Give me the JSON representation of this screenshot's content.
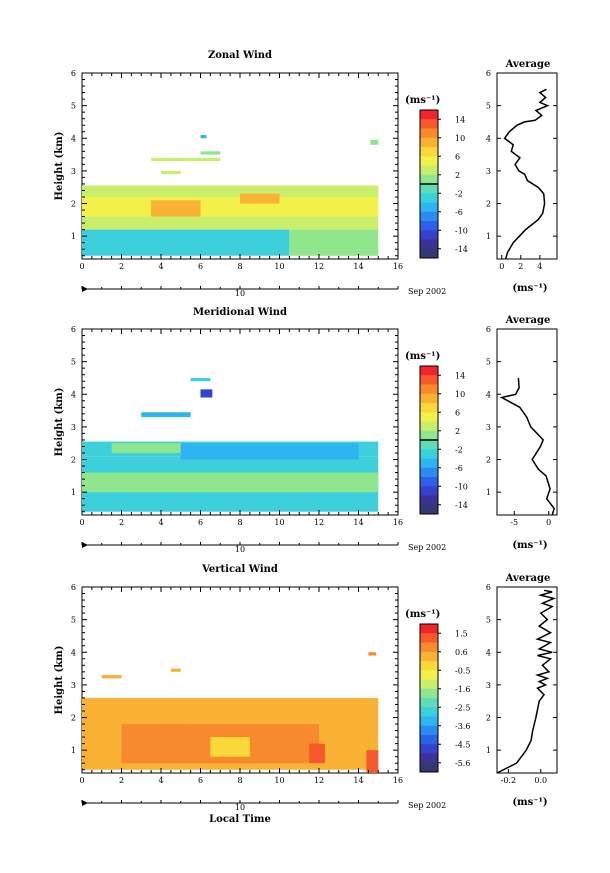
{
  "chart_data": [
    {
      "type": "heatmap",
      "title": "Zonal Wind",
      "xlabel": "",
      "ylabel": "Height (km)",
      "x_ticks": [
        "0",
        "2",
        "4",
        "6",
        "8",
        "10",
        "12",
        "14",
        "16"
      ],
      "y_ticks": [
        "1",
        "2",
        "3",
        "4",
        "5",
        "6"
      ],
      "xlim": [
        0,
        16
      ],
      "ylim": [
        0.3,
        6
      ],
      "date_label": "Sep 2002",
      "date_day": "10",
      "colorbar": {
        "unit": "(ms⁻¹)",
        "tick_labels": [
          "14",
          "10",
          "6",
          "2",
          "-2",
          "-6",
          "-10",
          "-14"
        ],
        "zero_line_index": 8
      },
      "cells": [
        {
          "t0": 0,
          "t1": 15,
          "h0": 2.2,
          "h1": 2.55,
          "v": 4
        },
        {
          "t0": 0,
          "t1": 15,
          "h0": 1.6,
          "h1": 2.2,
          "v": 6
        },
        {
          "t0": 0,
          "t1": 15,
          "h0": 1.2,
          "h1": 1.6,
          "v": 3
        },
        {
          "t0": 0,
          "t1": 10.5,
          "h0": 0.4,
          "h1": 1.2,
          "v": -3
        },
        {
          "t0": 10.5,
          "t1": 15,
          "h0": 0.4,
          "h1": 1.2,
          "v": 2
        },
        {
          "t0": 3.5,
          "t1": 6,
          "h0": 1.6,
          "h1": 2.1,
          "v": 9
        },
        {
          "t0": 8,
          "t1": 10,
          "h0": 2.0,
          "h1": 2.3,
          "v": 10
        },
        {
          "t0": 4,
          "t1": 5,
          "h0": 2.9,
          "h1": 3.0,
          "v": 3
        },
        {
          "t0": 6,
          "t1": 7,
          "h0": 3.5,
          "h1": 3.6,
          "v": 1
        },
        {
          "t0": 6,
          "t1": 6.3,
          "h0": 4.0,
          "h1": 4.1,
          "v": -4
        },
        {
          "t0": 14.6,
          "t1": 15,
          "h0": 3.8,
          "h1": 3.95,
          "v": 2
        },
        {
          "t0": 3.5,
          "t1": 7,
          "h0": 3.3,
          "h1": 3.4,
          "v": 4
        }
      ],
      "avg_profile": {
        "title": "Average",
        "x_ticks": [
          "0",
          "2",
          "4"
        ],
        "xlim": [
          -0.5,
          5.8
        ],
        "unit": "(ms⁻¹)",
        "points": [
          [
            0.4,
            0.3
          ],
          [
            0.6,
            0.5
          ],
          [
            1.2,
            0.8
          ],
          [
            2.5,
            1.2
          ],
          [
            3.8,
            1.5
          ],
          [
            4.3,
            1.7
          ],
          [
            4.5,
            2.0
          ],
          [
            4.4,
            2.3
          ],
          [
            3.8,
            2.5
          ],
          [
            2.7,
            2.7
          ],
          [
            2.4,
            2.9
          ],
          [
            1.8,
            3.0
          ],
          [
            1.4,
            3.2
          ],
          [
            1.9,
            3.4
          ],
          [
            1.0,
            3.6
          ],
          [
            1.2,
            3.8
          ],
          [
            0.3,
            4.0
          ],
          [
            0.8,
            4.2
          ],
          [
            1.6,
            4.4
          ],
          [
            2.4,
            4.5
          ],
          [
            3.5,
            4.55
          ],
          [
            4.2,
            4.7
          ],
          [
            3.6,
            4.85
          ],
          [
            4.8,
            5.0
          ],
          [
            4.0,
            5.1
          ],
          [
            4.6,
            5.25
          ],
          [
            4.0,
            5.4
          ],
          [
            4.7,
            5.5
          ]
        ]
      }
    },
    {
      "type": "heatmap",
      "title": "Meridional Wind",
      "xlabel": "",
      "ylabel": "Height (km)",
      "x_ticks": [
        "0",
        "2",
        "4",
        "6",
        "8",
        "10",
        "12",
        "14",
        "16"
      ],
      "y_ticks": [
        "1",
        "2",
        "3",
        "4",
        "5",
        "6"
      ],
      "xlim": [
        0,
        16
      ],
      "ylim": [
        0.3,
        6
      ],
      "date_label": "Sep 2002",
      "date_day": "10",
      "colorbar": {
        "unit": "(ms⁻¹)",
        "tick_labels": [
          "14",
          "10",
          "6",
          "2",
          "-2",
          "-6",
          "-10",
          "-14"
        ],
        "zero_line_index": 8
      },
      "cells": [
        {
          "t0": 0,
          "t1": 15,
          "h0": 2.1,
          "h1": 2.55,
          "v": -2
        },
        {
          "t0": 0,
          "t1": 15,
          "h0": 0.4,
          "h1": 2.1,
          "v": -3
        },
        {
          "t0": 0,
          "t1": 15,
          "h0": 1.0,
          "h1": 1.6,
          "v": 1
        },
        {
          "t0": 5,
          "t1": 14,
          "h0": 2.0,
          "h1": 2.5,
          "v": -4
        },
        {
          "t0": 3,
          "t1": 5.5,
          "h0": 3.3,
          "h1": 3.45,
          "v": -5
        },
        {
          "t0": 6,
          "t1": 6.6,
          "h0": 3.9,
          "h1": 4.15,
          "v": -10
        },
        {
          "t0": 5.5,
          "t1": 6.5,
          "h0": 4.4,
          "h1": 4.5,
          "v": -2
        },
        {
          "t0": 1.5,
          "t1": 5,
          "h0": 2.2,
          "h1": 2.5,
          "v": 2
        }
      ],
      "avg_profile": {
        "title": "Average",
        "x_ticks": [
          "-5",
          "0"
        ],
        "xlim": [
          -7.5,
          1.2
        ],
        "unit": "(ms⁻¹)",
        "points": [
          [
            0.5,
            0.3
          ],
          [
            0.8,
            0.5
          ],
          [
            -0.3,
            0.8
          ],
          [
            0.2,
            1.1
          ],
          [
            -0.4,
            1.5
          ],
          [
            -1.5,
            1.7
          ],
          [
            -2.4,
            2.0
          ],
          [
            -1.2,
            2.4
          ],
          [
            -0.8,
            2.6
          ],
          [
            -2.6,
            3.0
          ],
          [
            -3.2,
            3.3
          ],
          [
            -4.2,
            3.6
          ],
          [
            -6.8,
            3.9
          ],
          [
            -4.8,
            4.0
          ],
          [
            -4.3,
            4.2
          ],
          [
            -4.4,
            4.5
          ]
        ]
      }
    },
    {
      "type": "heatmap",
      "title": "Vertical Wind",
      "xlabel": "Local Time",
      "ylabel": "Height (km)",
      "x_ticks": [
        "0",
        "2",
        "4",
        "6",
        "8",
        "10",
        "12",
        "14",
        "16"
      ],
      "y_ticks": [
        "1",
        "2",
        "3",
        "4",
        "5",
        "6"
      ],
      "xlim": [
        0,
        16
      ],
      "ylim": [
        0.3,
        6
      ],
      "date_label": "Sep 2002",
      "date_day": "10",
      "colorbar": {
        "unit": "(ms⁻¹)",
        "tick_labels": [
          "1.5",
          "0.6",
          "-0.5",
          "-1.6",
          "-2.5",
          "-3.6",
          "-4.5",
          "-5.6"
        ],
        "zero_line_index": -1
      },
      "cells": [
        {
          "t0": 0,
          "t1": 15,
          "h0": 0.4,
          "h1": 2.6,
          "v": 0.4
        },
        {
          "t0": 2,
          "t1": 12,
          "h0": 0.6,
          "h1": 1.8,
          "v": 0.6
        },
        {
          "t0": 11.5,
          "t1": 12.3,
          "h0": 0.6,
          "h1": 1.2,
          "v": 1.4
        },
        {
          "t0": 14.4,
          "t1": 15,
          "h0": 0.3,
          "h1": 1.0,
          "v": 1.2
        },
        {
          "t0": 4.3,
          "t1": 5,
          "h0": 1.0,
          "h1": 1.8,
          "v": 0.9
        },
        {
          "t0": 6.5,
          "t1": 8.5,
          "h0": 0.8,
          "h1": 1.4,
          "v": -0.3
        },
        {
          "t0": 1,
          "t1": 2.5,
          "h0": 2.2,
          "h1": 2.5,
          "v": 0.2
        },
        {
          "t0": 4.5,
          "t1": 5,
          "h0": 3.4,
          "h1": 3.5,
          "v": 0.3
        },
        {
          "t0": 14.5,
          "t1": 14.9,
          "h0": 3.9,
          "h1": 4.0,
          "v": 0.8
        },
        {
          "t0": 1,
          "t1": 2,
          "h0": 3.2,
          "h1": 3.3,
          "v": 0.1
        }
      ],
      "avg_profile": {
        "title": "Average",
        "x_ticks": [
          "-0.2",
          "0.0"
        ],
        "xlim": [
          -0.27,
          0.1
        ],
        "unit": "(ms⁻¹)",
        "points": [
          [
            -0.27,
            0.3
          ],
          [
            -0.15,
            0.6
          ],
          [
            -0.09,
            1.0
          ],
          [
            -0.06,
            1.3
          ],
          [
            -0.05,
            1.6
          ],
          [
            -0.03,
            2.0
          ],
          [
            -0.01,
            2.5
          ],
          [
            0.02,
            2.7
          ],
          [
            -0.02,
            2.9
          ],
          [
            0.03,
            3.0
          ],
          [
            -0.01,
            3.1
          ],
          [
            0.04,
            3.2
          ],
          [
            -0.02,
            3.3
          ],
          [
            0.05,
            3.4
          ],
          [
            0.01,
            3.6
          ],
          [
            0.06,
            3.8
          ],
          [
            -0.02,
            3.9
          ],
          [
            0.07,
            4.0
          ],
          [
            -0.01,
            4.1
          ],
          [
            0.06,
            4.3
          ],
          [
            -0.02,
            4.4
          ],
          [
            0.06,
            4.6
          ],
          [
            -0.01,
            4.8
          ],
          [
            0.04,
            5.0
          ],
          [
            0.0,
            5.2
          ],
          [
            0.07,
            5.4
          ],
          [
            0.01,
            5.5
          ],
          [
            0.08,
            5.65
          ],
          [
            0.0,
            5.75
          ],
          [
            0.07,
            5.85
          ],
          [
            0.02,
            5.9
          ]
        ]
      }
    }
  ]
}
